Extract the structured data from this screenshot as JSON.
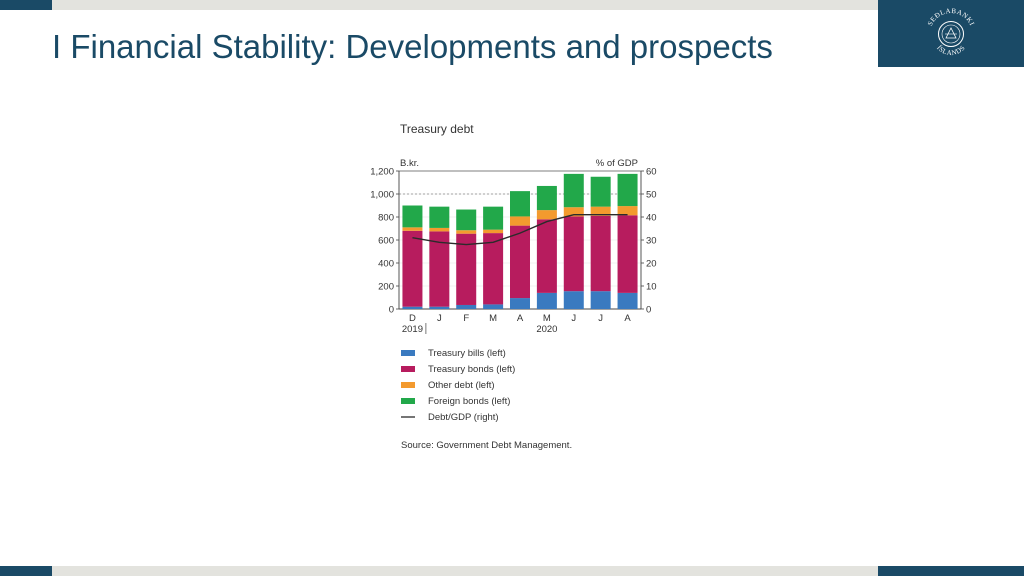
{
  "page": {
    "title": "I Financial Stability: Developments and prospects",
    "logo_text": "SEÐLABANKI ÍSLANDS"
  },
  "colors": {
    "brand": "#1a4a66",
    "treasury_bills": "#3a7ac0",
    "treasury_bonds": "#b71c5e",
    "other_debt": "#f39a2e",
    "foreign_bonds": "#22a84a",
    "debt_gdp": "#2b2b2b"
  },
  "chart_data": {
    "type": "bar",
    "stacked": true,
    "title": "Treasury debt",
    "ylabel_left": "B.kr.",
    "ylabel_right": "% of GDP",
    "ylim_left": [
      0,
      1200
    ],
    "ylim_right": [
      0,
      60
    ],
    "yticks_left": [
      "0",
      "200",
      "400",
      "600",
      "800",
      "1,000",
      "1,200"
    ],
    "yticks_right": [
      "0",
      "10",
      "20",
      "30",
      "40",
      "50",
      "60"
    ],
    "reference_line_left": 1000,
    "categories": [
      "D",
      "J",
      "F",
      "M",
      "A",
      "M",
      "J",
      "J",
      "A"
    ],
    "year_labels": [
      {
        "label": "2019",
        "category_index": 0
      },
      {
        "label": "2020",
        "category_index": 5
      }
    ],
    "series": [
      {
        "name": "Treasury bills (left)",
        "color_key": "treasury_bills",
        "values": [
          20,
          20,
          35,
          40,
          95,
          140,
          155,
          155,
          140
        ]
      },
      {
        "name": "Treasury bonds (left)",
        "color_key": "treasury_bonds",
        "values": [
          660,
          655,
          620,
          620,
          630,
          640,
          650,
          655,
          675
        ]
      },
      {
        "name": "Other debt (left)",
        "color_key": "other_debt",
        "values": [
          30,
          30,
          30,
          30,
          80,
          80,
          80,
          80,
          80
        ]
      },
      {
        "name": "Foreign bonds (left)",
        "color_key": "foreign_bonds",
        "values": [
          190,
          185,
          180,
          200,
          220,
          210,
          290,
          260,
          280
        ]
      }
    ],
    "line_series": {
      "name": "Debt/GDP (right)",
      "color_key": "debt_gdp",
      "axis": "right",
      "values": [
        31,
        29,
        28,
        29,
        33,
        38,
        41,
        41,
        41
      ]
    },
    "source": "Source: Government Debt Management."
  }
}
